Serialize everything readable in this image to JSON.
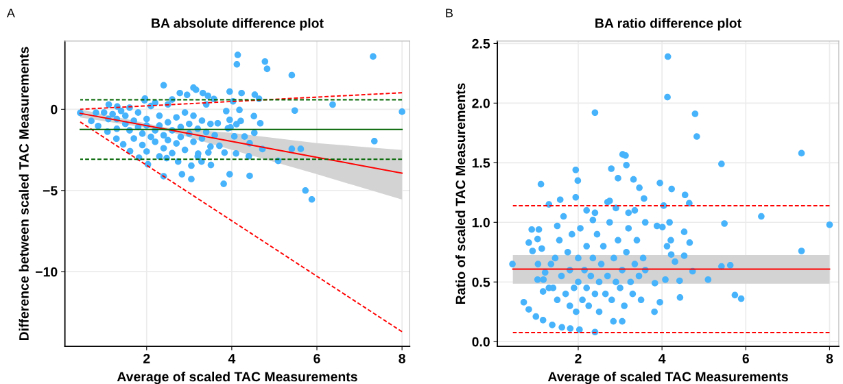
{
  "chart_data": [
    {
      "type": "scatter",
      "title": "BA absolute difference plot",
      "xlabel": "Average of scaled TAC Measurements",
      "ylabel": "Difference between scaled TAC Measurements",
      "annotations": [
        "A"
      ],
      "xlim": [
        0.08,
        8.18
      ],
      "ylim": [
        -14.6,
        4.2
      ],
      "xticks": [
        2,
        4,
        6,
        8
      ],
      "yticks": [
        {
          "value": -10,
          "label": "−10"
        },
        {
          "value": -5,
          "label": "−5"
        },
        0
      ],
      "grid": true,
      "series": [
        {
          "marker": "circle",
          "color": "#47b3fb",
          "x": [
            4.14,
            4.12,
            4.78,
            4.83,
            7.32,
            5.41,
            2.4,
            6.37,
            5.48,
            8.0,
            7.35,
            5.41,
            5.62,
            5.09,
            5.73,
            5.88,
            4.42,
            3.95,
            3.81,
            2.83,
            3.05,
            2.4,
            2.03,
            1.82,
            3.95,
            4.23,
            4.54,
            4.64,
            4.03,
            4.18,
            4.52,
            4.67,
            4.53,
            4.72,
            4.42,
            4.3,
            4.06,
            4.4,
            4.1,
            3.83,
            3.71,
            3.87,
            3.95,
            4.11,
            4.21,
            3.91,
            3.97,
            3.67,
            3.1,
            3.16,
            2.78,
            2.95,
            3.32,
            3.44,
            3.58,
            1.96,
            1.11,
            1.31,
            3.29,
            3.51,
            3.05,
            2.74,
            2.47,
            3.45,
            3.21,
            0.7,
            0.86,
            1.08,
            1.29,
            1.45,
            1.61,
            0.44,
            0.81,
            1.2,
            1.3,
            1.4,
            1.5,
            1.5,
            1.6,
            1.6,
            1.7,
            1.7,
            1.8,
            1.8,
            1.9,
            1.9,
            2.0,
            2.0,
            2.0,
            2.1,
            2.1,
            2.2,
            2.2,
            2.3,
            2.3,
            2.3,
            2.4,
            2.4,
            2.5,
            2.5,
            2.5,
            2.6,
            2.6,
            2.7,
            2.7,
            2.8,
            2.8,
            2.9,
            2.9,
            3.0,
            3.0,
            3.1,
            3.1,
            3.2,
            3.2,
            3.3,
            3.3,
            3.4,
            3.4,
            3.5,
            3.5,
            3.6,
            1.1,
            1.3,
            1.0,
            2.6,
            2.2,
            1.95
          ],
          "values": [
            3.35,
            2.77,
            2.94,
            2.49,
            3.25,
            2.1,
            1.48,
            0.29,
            -0.08,
            -0.15,
            -1.96,
            -2.44,
            -2.44,
            -3.18,
            -5.0,
            -5.55,
            -4.1,
            -4.0,
            -4.59,
            -4.0,
            -4.3,
            -4.12,
            -3.39,
            -2.98,
            1.09,
            1.0,
            0.9,
            0.65,
            0.49,
            -0.04,
            -0.42,
            -0.86,
            -1.45,
            -2.45,
            -2.09,
            -1.68,
            -1.67,
            -2.89,
            -2.72,
            -2.67,
            -2.25,
            -0.11,
            -0.65,
            -0.92,
            -0.72,
            -1.17,
            -1.12,
            -0.86,
            1.33,
            1.2,
            1.0,
            0.89,
            1.0,
            0.83,
            0.64,
            0.66,
            0.29,
            0.17,
            -3.22,
            -3.43,
            -3.47,
            -3.22,
            -3.01,
            -2.66,
            -2.73,
            -0.72,
            -1.03,
            -1.38,
            -1.81,
            -2.16,
            -2.58,
            -0.22,
            -0.21,
            -0.3,
            -0.6,
            -0.1,
            -0.9,
            -0.4,
            -1.3,
            0.1,
            -0.7,
            -1.8,
            -1.1,
            -0.2,
            -1.5,
            -2.2,
            -0.6,
            -1.0,
            -2.6,
            -1.7,
            0.2,
            -1.3,
            -2.0,
            -0.4,
            -1.0,
            -2.9,
            -1.6,
            -2.4,
            -0.8,
            -1.9,
            0.3,
            -1.3,
            -2.7,
            -0.5,
            -2.1,
            -1.1,
            -1.7,
            -0.2,
            -2.5,
            -0.9,
            -1.5,
            -2.0,
            -0.4,
            -1.2,
            -2.9,
            -0.7,
            -1.8,
            0.3,
            -1.4,
            -2.3,
            -0.9,
            -1.6,
            -0.6,
            -1.2,
            -0.2,
            0.6,
            0.4,
            0.55
          ]
        },
        {
          "type": "line",
          "color": "#ff0000",
          "line_style": "solid",
          "x": [
            0.44,
            2.5,
            4,
            6,
            8
          ],
          "values": [
            -0.25,
            -1.25,
            -1.98,
            -2.96,
            -3.93
          ],
          "lower": [
            -0.5,
            -1.35,
            -2.5,
            -4.0,
            -5.56
          ],
          "upper": [
            0.0,
            -1.15,
            -1.45,
            -2.08,
            -2.51
          ]
        },
        {
          "type": "line",
          "color": "#ff0000",
          "line_style": "dashed",
          "x": [
            0.44,
            8
          ],
          "values": [
            0.0,
            1.02
          ]
        },
        {
          "type": "line",
          "color": "#ff0000",
          "line_style": "dashed",
          "x": [
            0.44,
            8
          ],
          "values": [
            -0.78,
            -13.7
          ]
        },
        {
          "type": "line",
          "color": "#006400",
          "line_style": "dashed",
          "x": [
            0.44,
            8
          ],
          "values": [
            0.59,
            0.59
          ]
        },
        {
          "type": "line",
          "color": "#006400",
          "line_style": "solid",
          "x": [
            0.44,
            8
          ],
          "values": [
            -1.24,
            -1.24
          ]
        },
        {
          "type": "line",
          "color": "#006400",
          "line_style": "dashed",
          "x": [
            0.44,
            8
          ],
          "values": [
            -3.08,
            -3.08
          ]
        }
      ]
    },
    {
      "type": "scatter",
      "title": "BA ratio difference plot",
      "xlabel": "Average of scaled TAC Measurements",
      "ylabel": "Ratio of scaled TAC Measurements",
      "annotations": [
        "B"
      ],
      "xlim": [
        0.07,
        8.22
      ],
      "ylim": [
        -0.04,
        2.52
      ],
      "xticks": [
        2,
        4,
        6,
        8
      ],
      "yticks": [
        {
          "value": 0,
          "label": "0.0"
        },
        {
          "value": 0.5,
          "label": "0.5"
        },
        {
          "value": 1,
          "label": "1.0"
        },
        {
          "value": 1.5,
          "label": "1.5"
        },
        {
          "value": 2,
          "label": "2.0"
        },
        {
          "value": 2.5,
          "label": "2.5"
        }
      ],
      "grid": true,
      "series": [
        {
          "marker": "circle",
          "color": "#47b3fb",
          "x": [
            4.14,
            4.13,
            2.4,
            4.79,
            4.83,
            7.33,
            5.42,
            3.06,
            3.13,
            3.15,
            2.79,
            1.94,
            2.95,
            1.99,
            3.32,
            1.11,
            3.95,
            4.23,
            3.46,
            4.55,
            1.94,
            1.57,
            3.57,
            4.65,
            1.3,
            4.04,
            6.37,
            8.0,
            5.49,
            7.33,
            5.63,
            5.42,
            5.1,
            5.74,
            5.89,
            0.43,
            4.43,
            3.95,
            3.82,
            2.84,
            3.05,
            2.03,
            2.4,
            1.81,
            4.53,
            4.66,
            4.53,
            4.73,
            4.42,
            4.18,
            4.01,
            3.88,
            4.21,
            4.12,
            4.22,
            4.31,
            4.08,
            3.83,
            0.7,
            0.82,
            0.99,
            1.16,
            1.38,
            1.61,
            0.82,
            1.03,
            1.06,
            0.89,
            0.91,
            1.13,
            1.04,
            1.03,
            1.17,
            1.21,
            1.16,
            1.4,
            1.45,
            1.5,
            1.55,
            1.6,
            1.65,
            1.7,
            1.75,
            1.8,
            1.8,
            1.85,
            1.9,
            1.95,
            2.0,
            2.0,
            2.05,
            2.1,
            2.15,
            2.2,
            2.2,
            2.25,
            2.3,
            2.35,
            2.4,
            2.45,
            2.5,
            2.5,
            2.55,
            2.6,
            2.65,
            2.7,
            2.75,
            2.8,
            2.85,
            2.9,
            2.95,
            3.0,
            3.05,
            3.1,
            3.15,
            3.2,
            3.25,
            3.3,
            3.35,
            3.4,
            3.45,
            3.5,
            3.55,
            3.6,
            3.6,
            1.5,
            1.35,
            1.3,
            2.7,
            2.75,
            2.4,
            2.35,
            3.2,
            3.35,
            2.9,
            2.2
          ],
          "values": [
            2.39,
            2.05,
            1.92,
            1.91,
            1.72,
            1.58,
            1.49,
            1.57,
            1.56,
            1.48,
            1.45,
            1.44,
            1.37,
            1.35,
            1.36,
            1.32,
            1.33,
            1.28,
            1.29,
            1.23,
            1.21,
            1.19,
            1.2,
            1.16,
            1.15,
            1.14,
            1.05,
            0.98,
            0.99,
            0.76,
            0.64,
            0.63,
            0.52,
            0.39,
            0.36,
            0.65,
            0.37,
            0.33,
            0.25,
            0.17,
            0.17,
            0.1,
            0.08,
            0.11,
            0.92,
            0.83,
            0.72,
            0.59,
            0.51,
            1.0,
            0.96,
            0.97,
            0.85,
            0.8,
            0.73,
            0.67,
            0.52,
            0.49,
            0.33,
            0.27,
            0.21,
            0.18,
            0.14,
            0.12,
            0.83,
            0.86,
            0.94,
            0.94,
            0.76,
            0.78,
            0.65,
            0.52,
            0.52,
            0.58,
            0.42,
            0.45,
            0.7,
            0.35,
            0.85,
            0.55,
            1.05,
            0.4,
            0.75,
            0.3,
            0.6,
            0.9,
            0.45,
            0.25,
            0.7,
            0.5,
            0.95,
            0.35,
            0.6,
            0.8,
            0.45,
            0.3,
            0.55,
            0.7,
            0.4,
            0.9,
            0.5,
            0.25,
            0.65,
            0.8,
            0.4,
            0.55,
            1.0,
            0.35,
            0.7,
            0.5,
            0.85,
            0.45,
            0.6,
            0.3,
            0.75,
            0.95,
            0.5,
            0.4,
            0.65,
            0.85,
            0.55,
            0.35,
            0.7,
            1.0,
            0.6,
            0.97,
            0.65,
            0.45,
            1.17,
            1.18,
            1.08,
            1.02,
            1.08,
            1.1,
            1.12,
            1.1
          ]
        },
        {
          "type": "line",
          "color": "#ff0000",
          "line_style": "solid",
          "x": [
            0.44,
            8
          ],
          "values": [
            0.608,
            0.608
          ],
          "lower": [
            0.485,
            0.485
          ],
          "upper": [
            0.726,
            0.726
          ]
        },
        {
          "type": "line",
          "color": "#ff0000",
          "line_style": "dashed",
          "x": [
            0.44,
            8
          ],
          "values": [
            1.139,
            1.139
          ]
        },
        {
          "type": "line",
          "color": "#ff0000",
          "line_style": "dashed",
          "x": [
            0.44,
            8
          ],
          "values": [
            0.076,
            0.076
          ]
        }
      ]
    }
  ]
}
